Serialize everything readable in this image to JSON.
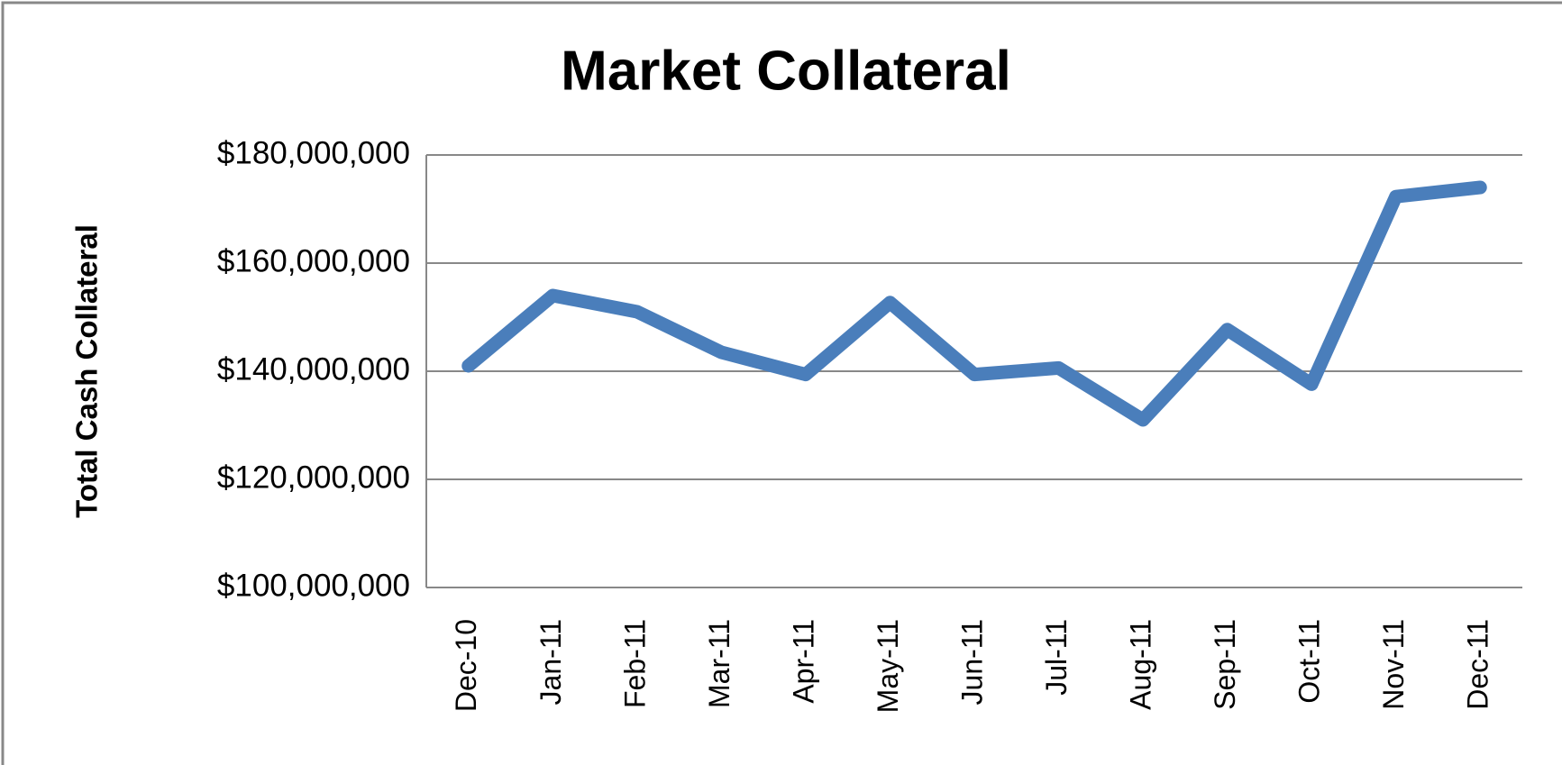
{
  "chart_data": {
    "type": "line",
    "title": "Market Collateral",
    "y_label": "Total Cash Collateral",
    "categories": [
      "Dec-10",
      "Jan-11",
      "Feb-11",
      "Mar-11",
      "Apr-11",
      "May-11",
      "Jun-11",
      "Jul-11",
      "Aug-11",
      "Sep-11",
      "Oct-11",
      "Nov-11",
      "Dec-11"
    ],
    "series": [
      {
        "name": "Total Cash Collateral",
        "color": "#4a7ebb",
        "values": [
          141000000,
          154000000,
          151000000,
          143500000,
          139400000,
          152700000,
          139400000,
          140600000,
          131000000,
          147700000,
          137600000,
          172300000,
          174000000
        ]
      }
    ],
    "ylim": [
      100000000,
      180000000
    ],
    "yticks": [
      {
        "value": 100000000,
        "label": "$100,000,000"
      },
      {
        "value": 120000000,
        "label": "$120,000,000"
      },
      {
        "value": 140000000,
        "label": "$140,000,000"
      },
      {
        "value": 160000000,
        "label": "$160,000,000"
      },
      {
        "value": 180000000,
        "label": "$180,000,000"
      }
    ],
    "grid": true
  }
}
